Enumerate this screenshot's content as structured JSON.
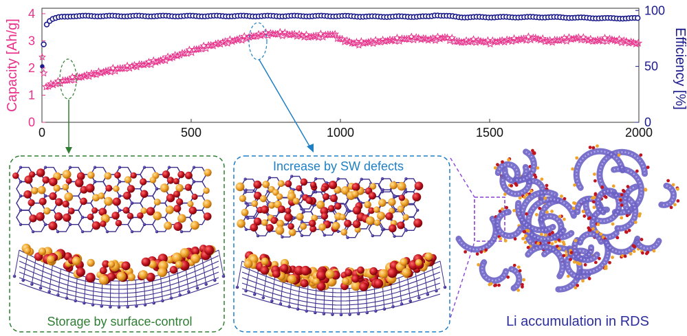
{
  "chart_data": {
    "type": "scatter",
    "xlabel": "",
    "xlim": [
      0,
      2000
    ],
    "xticks": [
      0,
      500,
      1000,
      1500,
      2000
    ],
    "left_axis": {
      "label": "Capacity [Ah/g]",
      "ylim": [
        0,
        4.2
      ],
      "ticks": [
        0,
        1,
        2,
        3,
        4
      ],
      "color": "#e8308a"
    },
    "right_axis": {
      "label": "Efficiency [%]",
      "ylim": [
        0,
        102
      ],
      "ticks": [
        0,
        50,
        100
      ],
      "color": "#1a1a8c"
    },
    "series": [
      {
        "name": "Capacity",
        "axis": "left",
        "marker": "star",
        "color": "#e8308a",
        "x": [
          1,
          10,
          50,
          100,
          150,
          200,
          250,
          300,
          350,
          400,
          450,
          500,
          550,
          600,
          650,
          700,
          750,
          800,
          850,
          900,
          950,
          975,
          1000,
          1050,
          1100,
          1150,
          1200,
          1250,
          1300,
          1350,
          1400,
          1450,
          1500,
          1550,
          1600,
          1650,
          1700,
          1750,
          1800,
          1850,
          1900,
          1950,
          2000
        ],
        "values": [
          2.4,
          1.3,
          1.45,
          1.6,
          1.72,
          1.84,
          1.95,
          2.05,
          2.15,
          2.28,
          2.45,
          2.62,
          2.78,
          2.92,
          3.03,
          3.15,
          3.25,
          3.26,
          3.22,
          3.15,
          3.2,
          3.25,
          3.05,
          2.9,
          2.95,
          3.0,
          3.05,
          3.1,
          3.05,
          3.12,
          2.95,
          3.0,
          2.95,
          3.0,
          3.05,
          3.1,
          2.98,
          3.05,
          3.1,
          3.0,
          3.05,
          2.98,
          2.9
        ]
      },
      {
        "name": "Efficiency",
        "axis": "right",
        "marker": "circle",
        "color": "#1a1a8c",
        "x": [
          1,
          10,
          30,
          60,
          100,
          200,
          300,
          400,
          500,
          600,
          700,
          800,
          900,
          1000,
          1100,
          1200,
          1300,
          1320,
          1400,
          1500,
          1600,
          1700,
          1800,
          1900,
          2000
        ],
        "values": [
          50,
          86,
          92,
          94,
          95,
          95,
          95,
          95,
          95,
          95,
          95,
          95,
          95,
          95,
          94.5,
          94.5,
          94.5,
          96,
          94,
          94,
          94,
          94,
          93.5,
          93,
          93
        ]
      }
    ]
  },
  "panels": {
    "left": {
      "caption": "Storage by surface-control",
      "color": "#2e7d32"
    },
    "middle": {
      "caption": "Increase by SW defects",
      "color": "#1e7fc4"
    },
    "right": {
      "caption": "Li accumulation in RDS",
      "color": "#2c2c9c"
    }
  },
  "colors": {
    "li_red": "#c0141f",
    "li_orange": "#f0a32a",
    "lattice": "#3a2a8c",
    "sheet": "#8a7fd8",
    "purple_dash": "#8a3fd8"
  }
}
